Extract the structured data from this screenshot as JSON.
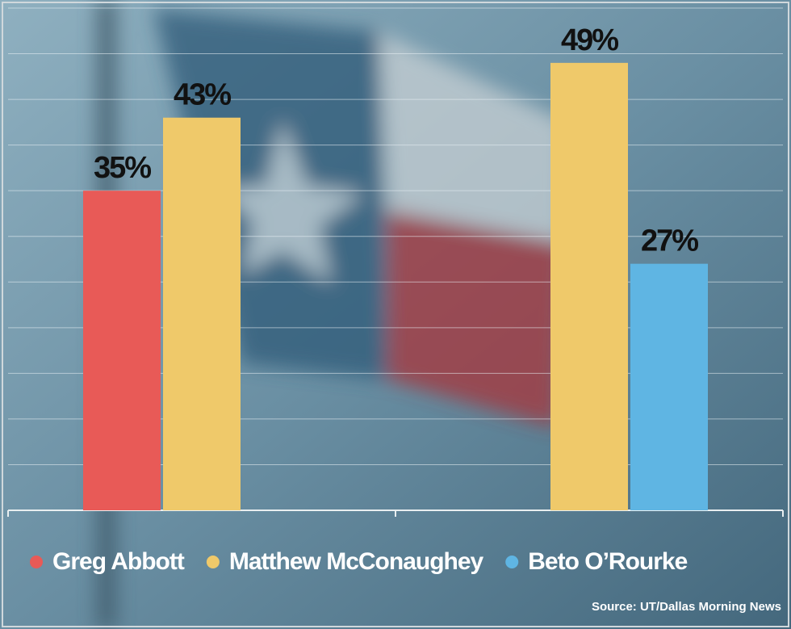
{
  "chart_data": {
    "type": "bar",
    "categories": [
      null,
      null
    ],
    "series": [
      {
        "name": "Greg Abbott",
        "color": "#e85a57",
        "values": [
          35,
          null
        ],
        "value_labels": [
          "35%",
          null
        ]
      },
      {
        "name": "Matthew McConaughey",
        "color": "#efc96a",
        "values": [
          43,
          49
        ],
        "value_labels": [
          "43%",
          "49%"
        ]
      },
      {
        "name": "Beto O’Rourke",
        "color": "#5fb5e3",
        "values": [
          null,
          27
        ],
        "value_labels": [
          null,
          "27%"
        ]
      }
    ],
    "ylim": [
      0,
      55
    ],
    "yticks": [
      0,
      5,
      10,
      15,
      20,
      25,
      30,
      35,
      40,
      45,
      50,
      55
    ],
    "grid": true,
    "legend": "bottom",
    "source": "Source: UT/Dallas Morning News"
  }
}
